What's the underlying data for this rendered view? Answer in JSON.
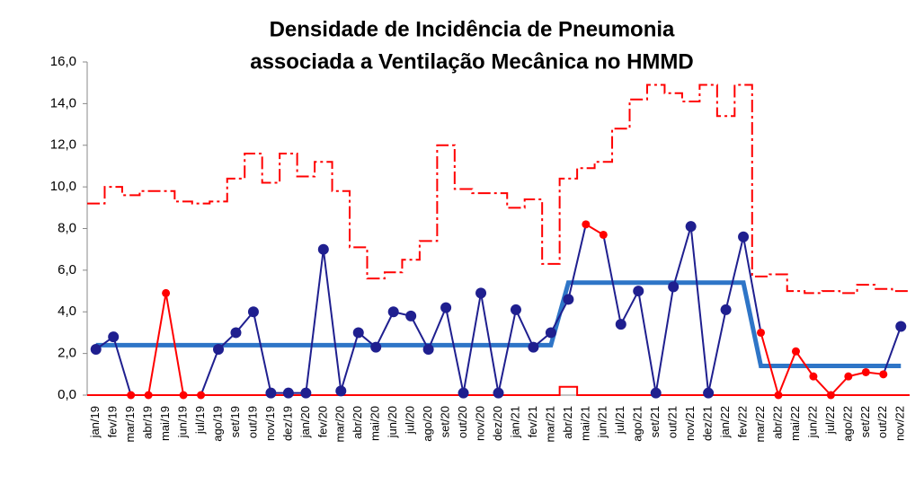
{
  "chart_data": {
    "type": "line",
    "title": [
      "Densidade de Incidência de Pneumonia",
      "associada a Ventilação Mecânica no HMMD"
    ],
    "categories": [
      "jan/19",
      "fev/19",
      "mar/19",
      "abr/19",
      "mai/19",
      "jun/19",
      "jul/19",
      "ago/19",
      "set/19",
      "out/19",
      "nov/19",
      "dez/19",
      "jan/20",
      "fev/20",
      "mar/20",
      "abr/20",
      "mai/20",
      "jun/20",
      "jul/20",
      "ago/20",
      "set/20",
      "out/20",
      "nov/20",
      "dez/20",
      "jan/21",
      "fev/21",
      "mar/21",
      "abr/21",
      "mai/21",
      "jun/21",
      "jul/21",
      "ago/21",
      "set/21",
      "out/21",
      "nov/21",
      "dez/21",
      "jan/22",
      "fev/22",
      "mar/22",
      "abr/22",
      "mai/22",
      "jun/22",
      "jul/22",
      "ago/22",
      "set/22",
      "out/22",
      "nov/22"
    ],
    "series": [
      {
        "style": "step-dashed",
        "color": "#ff0000",
        "values": [
          9.2,
          10.0,
          9.6,
          9.8,
          9.8,
          9.3,
          9.2,
          9.3,
          10.4,
          11.6,
          10.2,
          11.6,
          10.5,
          11.2,
          9.8,
          7.1,
          5.6,
          5.9,
          6.5,
          7.4,
          12.0,
          9.9,
          9.7,
          9.7,
          9.0,
          9.4,
          6.3,
          10.4,
          10.9,
          11.2,
          12.8,
          14.2,
          14.9,
          14.5,
          14.1,
          14.9,
          13.4,
          14.9,
          5.7,
          5.8,
          5.0,
          4.9,
          5.0,
          4.9,
          5.3,
          5.1,
          5.0
        ]
      },
      {
        "style": "step",
        "color": "#ff0000",
        "values": [
          0,
          0,
          0,
          0,
          0,
          0,
          0,
          0,
          0,
          0,
          0,
          0,
          0,
          0,
          0,
          0,
          0,
          0,
          0,
          0,
          0,
          0,
          0,
          0,
          0,
          0,
          0,
          0.4,
          0,
          0,
          0,
          0,
          0,
          0,
          0,
          0,
          0,
          0,
          0,
          0,
          0,
          0,
          0,
          0,
          0,
          0,
          0
        ]
      },
      {
        "style": "center",
        "color": "#2e75c7",
        "values": [
          2.4,
          2.4,
          2.4,
          2.4,
          2.4,
          2.4,
          2.4,
          2.4,
          2.4,
          2.4,
          2.4,
          2.4,
          2.4,
          2.4,
          2.4,
          2.4,
          2.4,
          2.4,
          2.4,
          2.4,
          2.4,
          2.4,
          2.4,
          2.4,
          2.4,
          2.4,
          2.4,
          5.4,
          5.4,
          5.4,
          5.4,
          5.4,
          5.4,
          5.4,
          5.4,
          5.4,
          5.4,
          5.4,
          1.4,
          1.4,
          1.4,
          1.4,
          1.4,
          1.4,
          1.4,
          1.4,
          1.4
        ]
      },
      {
        "style": "points",
        "color": "#1f1f8f",
        "alert_color": "#ff0000",
        "values": [
          2.2,
          2.8,
          0,
          0,
          4.9,
          0,
          0,
          2.2,
          3.0,
          4.0,
          0.1,
          0.1,
          0.1,
          7.0,
          0.2,
          3.0,
          2.3,
          4.0,
          3.8,
          2.2,
          4.2,
          0.1,
          4.9,
          0.1,
          4.1,
          2.3,
          3.0,
          4.6,
          8.2,
          7.7,
          3.4,
          5.0,
          0.1,
          5.2,
          8.1,
          0.1,
          4.1,
          7.6,
          3.0,
          0,
          2.1,
          0.9,
          0,
          0.9,
          1.1,
          1.0,
          3.3
        ],
        "alert": [
          false,
          false,
          true,
          true,
          true,
          true,
          true,
          false,
          false,
          false,
          false,
          false,
          false,
          false,
          false,
          false,
          false,
          false,
          false,
          false,
          false,
          false,
          false,
          false,
          false,
          false,
          false,
          false,
          true,
          true,
          false,
          false,
          false,
          false,
          false,
          false,
          false,
          false,
          true,
          true,
          true,
          true,
          true,
          true,
          true,
          true,
          false
        ]
      }
    ],
    "ylim": [
      0,
      16
    ],
    "yticks": [
      {
        "value": 0,
        "label": "0,0"
      },
      {
        "value": 2,
        "label": "2,0"
      },
      {
        "value": 4,
        "label": "4,0"
      },
      {
        "value": 6,
        "label": "6,0"
      },
      {
        "value": 8,
        "label": "8,0"
      },
      {
        "value": 10,
        "label": "10,0"
      },
      {
        "value": 12,
        "label": "12,0"
      },
      {
        "value": 14,
        "label": "14,0"
      },
      {
        "value": 16,
        "label": "16,0"
      }
    ]
  }
}
